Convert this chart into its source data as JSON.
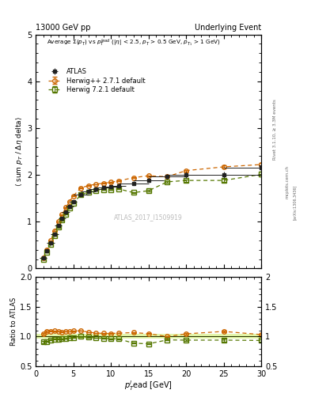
{
  "title_left": "13000 GeV pp",
  "title_right": "Underlying Event",
  "xlabel": "$p_T^l$ead [GeV]",
  "ylabel_main": "$\\langle$ sum $p_T$ / $\\Delta\\eta$ delta$\\rangle$",
  "ylabel_ratio": "Ratio to ATLAS",
  "annotation": "ATLAS_2017_I1509919",
  "rivet_label": "Rivet 3.1.10, ≥ 3.3M events",
  "arxiv_label": "[arXiv:1306.3436]",
  "mcplots_label": "mcplots.cern.ch",
  "inner_title": "Average $\\Sigma(p_T)$ vs $p_T^{lead}$ ($|\\eta|$ < 2.5, $p_T$ > 0.5 GeV, $p_{T_1}$ > 1 GeV)",
  "xlim": [
    0,
    30
  ],
  "ylim_main": [
    0,
    5
  ],
  "ylim_ratio": [
    0.5,
    2
  ],
  "atlas_x": [
    1.0,
    1.5,
    2.0,
    2.5,
    3.0,
    3.5,
    4.0,
    4.5,
    5.0,
    6.0,
    7.0,
    8.0,
    9.0,
    10.0,
    11.0,
    13.0,
    15.0,
    17.5,
    20.0,
    25.0,
    30.0
  ],
  "atlas_y": [
    0.22,
    0.37,
    0.55,
    0.73,
    0.92,
    1.07,
    1.2,
    1.32,
    1.42,
    1.57,
    1.65,
    1.7,
    1.73,
    1.75,
    1.77,
    1.82,
    1.89,
    1.96,
    2.0,
    2.0,
    2.15
  ],
  "atlas_yerr": [
    0.01,
    0.01,
    0.01,
    0.01,
    0.01,
    0.01,
    0.01,
    0.01,
    0.02,
    0.02,
    0.02,
    0.02,
    0.02,
    0.03,
    0.03,
    0.04,
    0.04,
    0.05,
    0.06,
    0.07,
    0.08
  ],
  "atlas_xerr": [
    0.5,
    0.25,
    0.5,
    0.5,
    0.5,
    0.5,
    0.5,
    0.5,
    0.5,
    1.0,
    1.0,
    1.0,
    1.0,
    1.0,
    1.0,
    2.0,
    2.0,
    2.5,
    2.5,
    5.0,
    5.0
  ],
  "hpp_x": [
    1.0,
    1.5,
    2.0,
    2.5,
    3.0,
    3.5,
    4.0,
    4.5,
    5.0,
    6.0,
    7.0,
    8.0,
    9.0,
    10.0,
    11.0,
    13.0,
    15.0,
    17.5,
    20.0,
    25.0,
    30.0
  ],
  "hpp_y": [
    0.23,
    0.4,
    0.6,
    0.8,
    1.0,
    1.15,
    1.3,
    1.43,
    1.55,
    1.72,
    1.77,
    1.8,
    1.82,
    1.84,
    1.87,
    1.94,
    1.98,
    1.96,
    2.09,
    2.17,
    2.22
  ],
  "hpp_yerr": [
    0.004,
    0.004,
    0.004,
    0.004,
    0.004,
    0.004,
    0.004,
    0.004,
    0.004,
    0.004,
    0.004,
    0.004,
    0.004,
    0.005,
    0.005,
    0.008,
    0.01,
    0.012,
    0.018,
    0.025,
    0.03
  ],
  "h721_x": [
    1.0,
    1.5,
    2.0,
    2.5,
    3.0,
    3.5,
    4.0,
    4.5,
    5.0,
    6.0,
    7.0,
    8.0,
    9.0,
    10.0,
    11.0,
    13.0,
    15.0,
    17.5,
    20.0,
    25.0,
    30.0
  ],
  "h721_y": [
    0.2,
    0.34,
    0.52,
    0.7,
    0.88,
    1.03,
    1.16,
    1.29,
    1.4,
    1.57,
    1.63,
    1.66,
    1.68,
    1.68,
    1.7,
    1.62,
    1.66,
    1.85,
    1.88,
    1.88,
    2.01
  ],
  "h721_yerr": [
    0.004,
    0.004,
    0.004,
    0.004,
    0.004,
    0.004,
    0.004,
    0.004,
    0.004,
    0.004,
    0.004,
    0.004,
    0.004,
    0.005,
    0.005,
    0.01,
    0.012,
    0.018,
    0.025,
    0.04,
    0.05
  ],
  "atlas_color": "#222222",
  "hpp_color": "#cc6600",
  "h721_color": "#557700",
  "ratio_band_color": "#ccee66",
  "ratio_band_alpha": 0.55,
  "ratio_line_color": "#88aa00"
}
